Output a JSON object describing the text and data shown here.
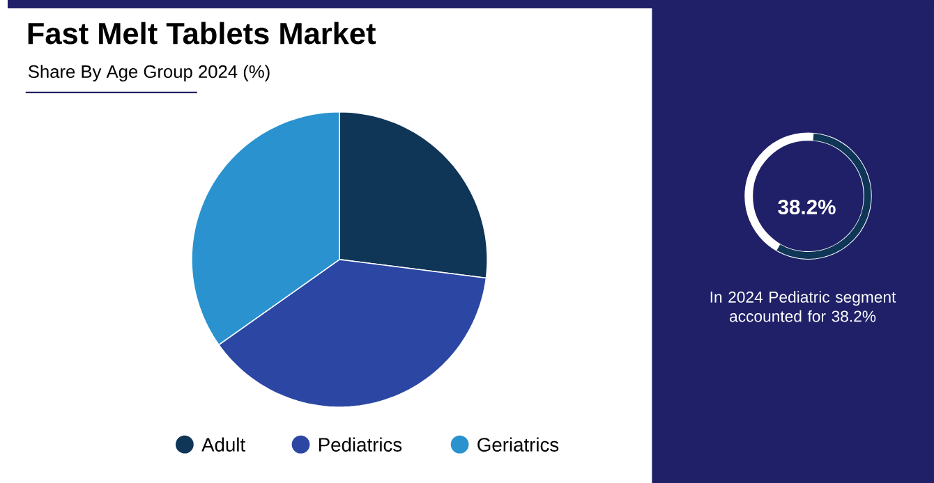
{
  "chart_data": {
    "type": "pie",
    "title": "Fast Melt Tablets Market",
    "subtitle": "Share By Age Group 2024 (%)",
    "categories": [
      "Adult",
      "Pediatrics",
      "Geriatrics"
    ],
    "values": [
      27,
      38.2,
      34.8
    ],
    "colors": [
      "#0f3557",
      "#2b47a3",
      "#2a93cf"
    ],
    "legend": "bottom",
    "annotations": [
      "38.2%",
      "In 2024  Pediatric segment accounted for 38.2%"
    ]
  }
}
